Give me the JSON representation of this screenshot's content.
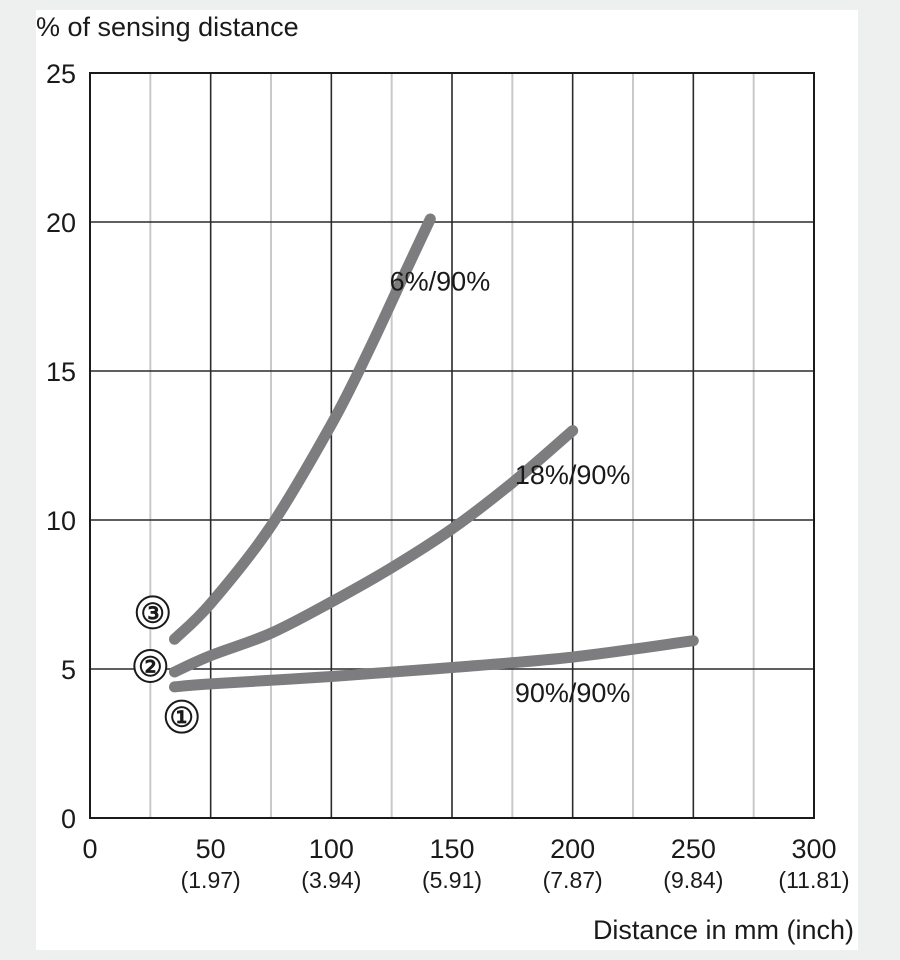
{
  "chart_data": {
    "type": "line",
    "title": "",
    "ylabel": "% of sensing distance",
    "xlabel": "Distance in mm (inch)",
    "xlim": [
      0,
      300
    ],
    "ylim": [
      0,
      25
    ],
    "grid": true,
    "x_ticks": [
      {
        "value": 0,
        "label": "0",
        "sub": ""
      },
      {
        "value": 50,
        "label": "50",
        "sub": "(1.97)"
      },
      {
        "value": 100,
        "label": "100",
        "sub": "(3.94)"
      },
      {
        "value": 150,
        "label": "150",
        "sub": "(5.91)"
      },
      {
        "value": 200,
        "label": "200",
        "sub": "(7.87)"
      },
      {
        "value": 250,
        "label": "250",
        "sub": "(9.84)"
      },
      {
        "value": 300,
        "label": "300",
        "sub": "(11.81)"
      }
    ],
    "y_ticks": [
      0,
      5,
      10,
      15,
      20,
      25
    ],
    "series": [
      {
        "name": "90%/90%",
        "badge": "①",
        "color": "#7d7d7f",
        "label_at": [
          200,
          3.9
        ],
        "badge_at": [
          38,
          3.4
        ],
        "points": [
          [
            35,
            4.4
          ],
          [
            50,
            4.5
          ],
          [
            100,
            4.75
          ],
          [
            150,
            5.05
          ],
          [
            200,
            5.4
          ],
          [
            250,
            5.95
          ]
        ]
      },
      {
        "name": "18%/90%",
        "badge": "②",
        "color": "#7d7d7f",
        "label_at": [
          200,
          11.2
        ],
        "badge_at": [
          25,
          5.1
        ],
        "points": [
          [
            35,
            4.9
          ],
          [
            50,
            5.45
          ],
          [
            75,
            6.2
          ],
          [
            100,
            7.25
          ],
          [
            125,
            8.4
          ],
          [
            150,
            9.7
          ],
          [
            175,
            11.25
          ],
          [
            200,
            13.0
          ]
        ]
      },
      {
        "name": "6%/90%",
        "badge": "③",
        "color": "#7d7d7f",
        "label_at": [
          145,
          17.7
        ],
        "badge_at": [
          26,
          6.9
        ],
        "points": [
          [
            35,
            6.0
          ],
          [
            50,
            7.2
          ],
          [
            75,
            9.8
          ],
          [
            100,
            13.2
          ],
          [
            115,
            15.6
          ],
          [
            130,
            18.2
          ],
          [
            141,
            20.1
          ]
        ]
      }
    ]
  }
}
